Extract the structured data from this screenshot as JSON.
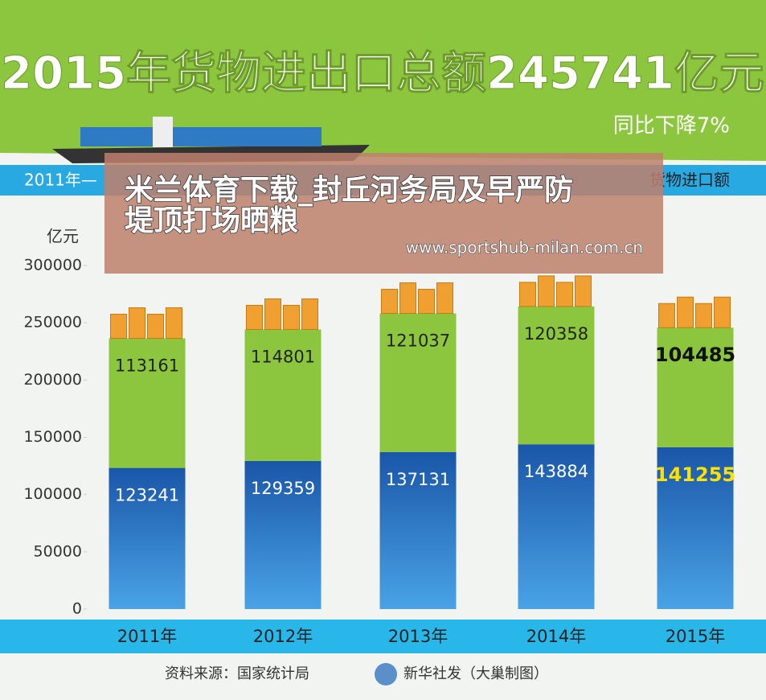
{
  "header": {
    "title": "2015年货物进出口总额245741亿元",
    "subtitle": "同比下降7%"
  },
  "band": {
    "left": "2011年—",
    "right": "货物进口额"
  },
  "overlay": {
    "headline": [
      "米兰体育下载_封丘河务局及早严防",
      "堤顶打场晒粮"
    ],
    "url": "www.sportshub-milan.com.cn"
  },
  "chart_data": {
    "type": "bar",
    "stacked": true,
    "y_label": "亿元",
    "categories": [
      "2011年",
      "2012年",
      "2013年",
      "2014年",
      "2015年"
    ],
    "series": [
      {
        "color": "#1f63b3",
        "values": [
          123241,
          129359,
          137131,
          143884,
          141255
        ]
      },
      {
        "color": "#8cc63f",
        "values": [
          113161,
          114801,
          121037,
          120358,
          104485
        ]
      }
    ],
    "ylim": [
      0,
      300000
    ],
    "yticks": [
      0,
      50000,
      100000,
      150000,
      200000,
      250000,
      300000
    ]
  },
  "footer": {
    "source": "资料来源：国家统计局",
    "credit": "新华社发（大巢制图）"
  }
}
